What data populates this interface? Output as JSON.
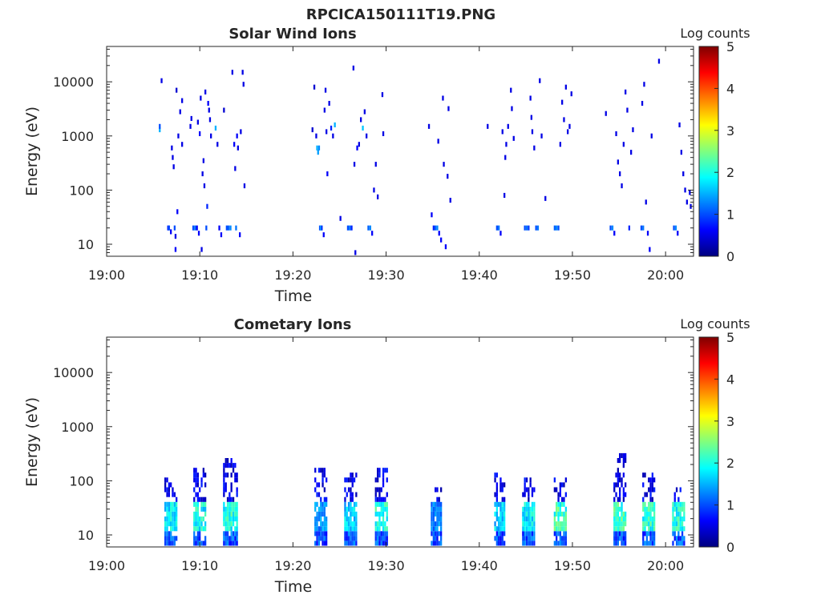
{
  "figure": {
    "title": "RPCICA150111T19.PNG"
  },
  "colormap": {
    "name": "jet",
    "stops": [
      "#00007f",
      "#0000ff",
      "#007fff",
      "#00ffff",
      "#7fff7f",
      "#ffff00",
      "#ff7f00",
      "#ff0000",
      "#7f0000"
    ]
  },
  "chart_data": [
    {
      "type": "heatmap",
      "title": "Solar Wind Ions",
      "xlabel": "Time",
      "ylabel": "Energy (eV)",
      "x_ticks": [
        "19:00",
        "19:10",
        "19:20",
        "19:30",
        "19:40",
        "19:50",
        "20:00"
      ],
      "x_range_minutes": [
        0,
        63
      ],
      "y_scale": "log",
      "y_ticks": [
        "10",
        "100",
        "1000",
        "10000"
      ],
      "y_range": [
        6,
        45000
      ],
      "colorbar": {
        "label": "Log counts",
        "range": [
          0,
          5
        ],
        "ticks": [
          "0",
          "1",
          "2",
          "3",
          "4",
          "5"
        ]
      },
      "cells": [
        [
          5.6,
          1300,
          1.5
        ],
        [
          5.6,
          1500,
          1.0
        ],
        [
          5.8,
          10500,
          0.5
        ],
        [
          6.5,
          20,
          0.8
        ],
        [
          6.6,
          20,
          1.0
        ],
        [
          6.8,
          17,
          0.6
        ],
        [
          6.9,
          600,
          0.5
        ],
        [
          7.0,
          400,
          0.5
        ],
        [
          7.1,
          270,
          0.5
        ],
        [
          7.2,
          20,
          1.0
        ],
        [
          7.3,
          14,
          0.5
        ],
        [
          7.3,
          8,
          0.6
        ],
        [
          7.4,
          7000,
          0.4
        ],
        [
          7.5,
          40,
          0.6
        ],
        [
          7.6,
          1000,
          0.5
        ],
        [
          7.8,
          2800,
          0.5
        ],
        [
          8.0,
          4500,
          0.5
        ],
        [
          8.0,
          700,
          0.5
        ],
        [
          8.9,
          1500,
          0.5
        ],
        [
          9.0,
          2100,
          0.5
        ],
        [
          9.2,
          20,
          1.0
        ],
        [
          9.4,
          20,
          1.2
        ],
        [
          9.6,
          20,
          0.6
        ],
        [
          9.7,
          1800,
          0.5
        ],
        [
          9.8,
          16,
          0.6
        ],
        [
          9.9,
          1100,
          0.6
        ],
        [
          10.0,
          5000,
          0.5
        ],
        [
          10.1,
          8,
          0.5
        ],
        [
          10.2,
          200,
          0.5
        ],
        [
          10.3,
          350,
          0.5
        ],
        [
          10.4,
          120,
          0.5
        ],
        [
          10.5,
          6500,
          0.5
        ],
        [
          10.6,
          20,
          1.0
        ],
        [
          10.7,
          50,
          0.8
        ],
        [
          10.8,
          4000,
          0.6
        ],
        [
          10.9,
          3000,
          0.5
        ],
        [
          11.0,
          2000,
          0.5
        ],
        [
          11.1,
          1000,
          0.5
        ],
        [
          11.6,
          1400,
          1.5
        ],
        [
          11.8,
          700,
          0.5
        ],
        [
          12.0,
          20,
          0.6
        ],
        [
          12.2,
          15,
          0.6
        ],
        [
          12.5,
          3000,
          0.4
        ],
        [
          12.8,
          20,
          1.0
        ],
        [
          13.0,
          20,
          1.1
        ],
        [
          13.2,
          20,
          1.3
        ],
        [
          13.4,
          15000,
          0.5
        ],
        [
          13.6,
          700,
          0.6
        ],
        [
          13.7,
          250,
          0.5
        ],
        [
          13.8,
          20,
          1.2
        ],
        [
          13.9,
          1000,
          0.6
        ],
        [
          14.0,
          600,
          0.5
        ],
        [
          14.2,
          15,
          0.6
        ],
        [
          14.3,
          1200,
          0.5
        ],
        [
          14.5,
          15000,
          0.5
        ],
        [
          14.6,
          9000,
          0.5
        ],
        [
          14.7,
          120,
          0.5
        ],
        [
          22.0,
          1300,
          0.4
        ],
        [
          22.2,
          8000,
          0.4
        ],
        [
          22.4,
          1000,
          0.5
        ],
        [
          22.5,
          600,
          1.5
        ],
        [
          22.6,
          500,
          1.4
        ],
        [
          22.7,
          600,
          1.3
        ],
        [
          22.8,
          20,
          1.0
        ],
        [
          22.9,
          20,
          1.5
        ],
        [
          23.0,
          20,
          0.9
        ],
        [
          23.2,
          15,
          0.6
        ],
        [
          23.3,
          3000,
          0.5
        ],
        [
          23.4,
          7000,
          0.5
        ],
        [
          23.5,
          1200,
          0.5
        ],
        [
          23.6,
          200,
          0.6
        ],
        [
          23.8,
          4000,
          0.5
        ],
        [
          24.0,
          1400,
          0.8
        ],
        [
          24.2,
          1000,
          0.5
        ],
        [
          24.4,
          1600,
          1.5
        ],
        [
          25.0,
          30,
          0.5
        ],
        [
          25.8,
          20,
          1.0
        ],
        [
          26.0,
          20,
          1.2
        ],
        [
          26.2,
          20,
          0.8
        ],
        [
          26.4,
          18000,
          0.5
        ],
        [
          26.5,
          300,
          0.5
        ],
        [
          26.6,
          7,
          0.5
        ],
        [
          26.8,
          600,
          0.6
        ],
        [
          27.0,
          700,
          0.5
        ],
        [
          27.2,
          2000,
          0.5
        ],
        [
          27.4,
          1400,
          1.6
        ],
        [
          27.6,
          2800,
          0.5
        ],
        [
          27.8,
          1000,
          0.5
        ],
        [
          28.0,
          20,
          1.1
        ],
        [
          28.2,
          20,
          1.3
        ],
        [
          28.4,
          16,
          0.6
        ],
        [
          28.6,
          100,
          0.5
        ],
        [
          28.8,
          300,
          0.5
        ],
        [
          29.0,
          75,
          0.5
        ],
        [
          29.5,
          5800,
          0.5
        ],
        [
          29.6,
          1100,
          0.5
        ],
        [
          34.5,
          1500,
          0.5
        ],
        [
          34.8,
          35,
          0.6
        ],
        [
          35.0,
          20,
          0.8
        ],
        [
          35.2,
          20,
          1.1
        ],
        [
          35.4,
          20,
          1.3
        ],
        [
          35.5,
          800,
          0.5
        ],
        [
          35.6,
          16,
          0.6
        ],
        [
          35.8,
          12,
          0.6
        ],
        [
          36.0,
          5000,
          0.5
        ],
        [
          36.1,
          300,
          0.5
        ],
        [
          36.3,
          9,
          0.6
        ],
        [
          36.5,
          180,
          0.5
        ],
        [
          36.6,
          3200,
          0.5
        ],
        [
          36.8,
          65,
          0.5
        ],
        [
          40.8,
          1500,
          0.5
        ],
        [
          41.8,
          20,
          1.0
        ],
        [
          42.0,
          20,
          1.2
        ],
        [
          42.2,
          16,
          0.6
        ],
        [
          42.4,
          1200,
          0.5
        ],
        [
          42.6,
          80,
          0.5
        ],
        [
          42.7,
          400,
          0.5
        ],
        [
          42.8,
          700,
          0.5
        ],
        [
          43.0,
          1500,
          0.5
        ],
        [
          43.3,
          7000,
          0.5
        ],
        [
          43.4,
          3200,
          0.5
        ],
        [
          43.6,
          900,
          0.5
        ],
        [
          44.8,
          20,
          1.0
        ],
        [
          45.0,
          20,
          1.2
        ],
        [
          45.2,
          20,
          0.9
        ],
        [
          45.4,
          5000,
          0.5
        ],
        [
          45.5,
          2200,
          0.5
        ],
        [
          45.6,
          1200,
          0.5
        ],
        [
          45.8,
          600,
          0.5
        ],
        [
          46.0,
          20,
          1.0
        ],
        [
          46.2,
          20,
          1.2
        ],
        [
          46.4,
          10500,
          0.5
        ],
        [
          46.6,
          1000,
          0.5
        ],
        [
          47.0,
          70,
          0.5
        ],
        [
          48.0,
          20,
          1.1
        ],
        [
          48.2,
          20,
          1.3
        ],
        [
          48.4,
          20,
          1.0
        ],
        [
          48.6,
          700,
          0.5
        ],
        [
          48.8,
          4200,
          0.5
        ],
        [
          49.0,
          2000,
          0.5
        ],
        [
          49.2,
          8000,
          0.5
        ],
        [
          49.4,
          1200,
          0.5
        ],
        [
          49.6,
          1500,
          0.5
        ],
        [
          49.8,
          6000,
          0.5
        ],
        [
          53.5,
          2600,
          0.5
        ],
        [
          54.0,
          20,
          1.0
        ],
        [
          54.2,
          20,
          1.3
        ],
        [
          54.4,
          16,
          0.6
        ],
        [
          54.6,
          1100,
          0.5
        ],
        [
          54.8,
          330,
          0.5
        ],
        [
          55.0,
          200,
          0.5
        ],
        [
          55.2,
          120,
          0.5
        ],
        [
          55.4,
          700,
          0.5
        ],
        [
          55.6,
          6500,
          0.5
        ],
        [
          55.8,
          3000,
          0.5
        ],
        [
          56.0,
          20,
          0.8
        ],
        [
          56.2,
          500,
          0.5
        ],
        [
          56.4,
          1300,
          0.5
        ],
        [
          57.3,
          20,
          1.0
        ],
        [
          57.4,
          4000,
          0.5
        ],
        [
          57.5,
          20,
          1.2
        ],
        [
          57.6,
          9000,
          0.5
        ],
        [
          57.8,
          60,
          0.5
        ],
        [
          58.0,
          16,
          0.6
        ],
        [
          58.2,
          8,
          0.6
        ],
        [
          58.4,
          1000,
          0.5
        ],
        [
          59.2,
          24000,
          0.5
        ],
        [
          60.8,
          20,
          1.0
        ],
        [
          61.0,
          20,
          1.3
        ],
        [
          61.2,
          16,
          0.6
        ],
        [
          61.4,
          1600,
          0.5
        ],
        [
          61.6,
          500,
          0.5
        ],
        [
          61.8,
          200,
          0.5
        ],
        [
          62.0,
          100,
          0.5
        ],
        [
          62.2,
          60,
          0.5
        ],
        [
          62.5,
          90,
          0.5
        ],
        [
          62.6,
          50,
          0.5
        ]
      ]
    },
    {
      "type": "heatmap",
      "title": "Cometary Ions",
      "xlabel": "Time",
      "ylabel": "Energy (eV)",
      "x_ticks": [
        "19:00",
        "19:10",
        "19:20",
        "19:30",
        "19:40",
        "19:50",
        "20:00"
      ],
      "x_range_minutes": [
        0,
        63
      ],
      "y_scale": "log",
      "y_ticks": [
        "10",
        "100",
        "1000",
        "10000"
      ],
      "y_range": [
        6,
        45000
      ],
      "colorbar": {
        "label": "Log counts",
        "range": [
          0,
          5
        ],
        "ticks": [
          "0",
          "1",
          "2",
          "3",
          "4",
          "5"
        ]
      },
      "columns": [
        {
          "start": 6.2,
          "width": 1.3,
          "top": 120,
          "peak": 2.2
        },
        {
          "start": 9.3,
          "width": 1.2,
          "top": 180,
          "peak": 2.3
        },
        {
          "start": 12.5,
          "width": 1.4,
          "top": 270,
          "peak": 2.4
        },
        {
          "start": 22.3,
          "width": 1.3,
          "top": 180,
          "peak": 1.6
        },
        {
          "start": 25.5,
          "width": 1.3,
          "top": 150,
          "peak": 2.0
        },
        {
          "start": 28.8,
          "width": 1.3,
          "top": 160,
          "peak": 2.4
        },
        {
          "start": 34.8,
          "width": 1.2,
          "top": 80,
          "peak": 1.5
        },
        {
          "start": 41.6,
          "width": 1.2,
          "top": 150,
          "peak": 2.0
        },
        {
          "start": 44.6,
          "width": 1.3,
          "top": 120,
          "peak": 2.2
        },
        {
          "start": 48.0,
          "width": 1.3,
          "top": 120,
          "peak": 2.6
        },
        {
          "start": 54.4,
          "width": 1.4,
          "top": 300,
          "peak": 2.6
        },
        {
          "start": 57.5,
          "width": 1.3,
          "top": 150,
          "peak": 2.5
        },
        {
          "start": 60.7,
          "width": 1.3,
          "top": 80,
          "peak": 2.4
        }
      ]
    }
  ]
}
